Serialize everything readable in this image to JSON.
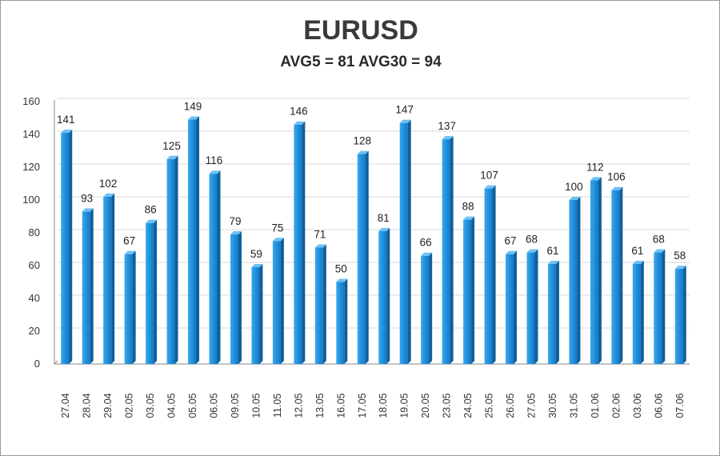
{
  "chart_data": {
    "type": "bar",
    "title": "EURUSD",
    "subtitle": "AVG5 = 81 AVG30 = 94",
    "categories": [
      "27.04",
      "28.04",
      "29.04",
      "02.05",
      "03.05",
      "04.05",
      "05.05",
      "06.05",
      "09.05",
      "10.05",
      "11.05",
      "12.05",
      "13.05",
      "16.05",
      "17.05",
      "18.05",
      "19.05",
      "20.05",
      "23.05",
      "24.05",
      "25.05",
      "26.05",
      "27.05",
      "30.05",
      "31.05",
      "01.06",
      "02.06",
      "03.06",
      "06.06",
      "07.06"
    ],
    "values": [
      141,
      93,
      102,
      67,
      86,
      125,
      149,
      116,
      79,
      59,
      75,
      146,
      71,
      50,
      128,
      81,
      147,
      66,
      137,
      88,
      107,
      67,
      68,
      61,
      100,
      112,
      106,
      61,
      68,
      58
    ],
    "ylim": [
      0,
      160
    ],
    "yticks": [
      0,
      20,
      40,
      60,
      80,
      100,
      120,
      140,
      160
    ],
    "grid": true,
    "data_labels": true,
    "colors": {
      "bar_front": "#1f8fdc",
      "bar_side": "#0e5f9c",
      "bar_top": "#6cc0f5",
      "grid": "#d9d9d9",
      "axis": "#888888"
    }
  }
}
